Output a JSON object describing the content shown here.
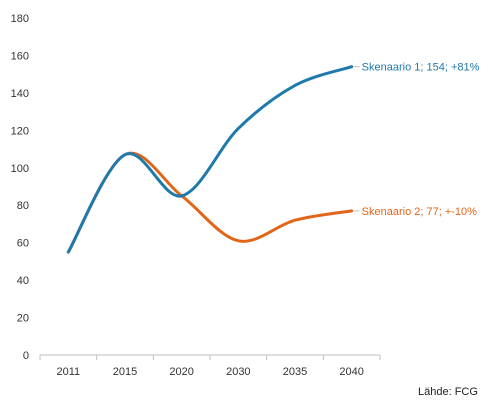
{
  "chart_data": {
    "type": "line",
    "title": "",
    "xlabel": "",
    "ylabel": "",
    "categories": [
      "2011",
      "2015",
      "2020",
      "2030",
      "2035",
      "2040"
    ],
    "ylim": [
      0,
      180
    ],
    "yticks": [
      0,
      20,
      40,
      60,
      80,
      100,
      120,
      140,
      160,
      180
    ],
    "grid": false,
    "series": [
      {
        "values": [
          55,
          107,
          85,
          121,
          144,
          154
        ],
        "color": "#1f7aab",
        "label": "Skenaario 1; 154; +81%"
      },
      {
        "values": [
          55,
          107,
          85,
          61,
          72,
          77
        ],
        "color": "#e0661a",
        "label": "Skenaario 2; 77; +-10%"
      }
    ],
    "source": "Lähde: FCG"
  }
}
